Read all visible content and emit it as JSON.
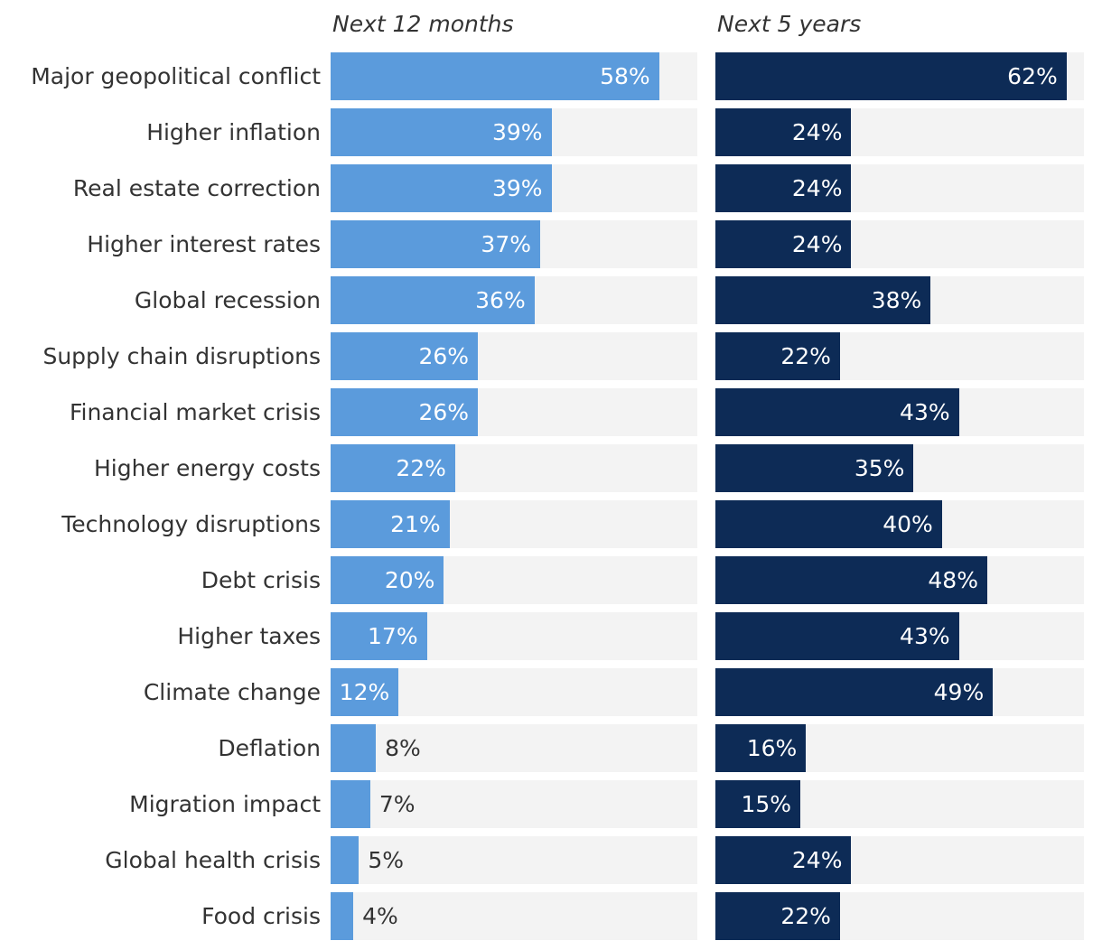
{
  "chart_data": {
    "type": "bar",
    "orientation": "horizontal",
    "categories": [
      "Major geopolitical conflict",
      "Higher inflation",
      "Real estate correction",
      "Higher interest rates",
      "Global recession",
      "Supply chain disruptions",
      "Financial market crisis",
      "Higher energy costs",
      "Technology disruptions",
      "Debt crisis",
      "Higher taxes",
      "Climate change",
      "Deflation",
      "Migration impact",
      "Global health crisis",
      "Food crisis"
    ],
    "series": [
      {
        "name": "Next 12 months",
        "color": "#5b9bdc",
        "values": [
          58,
          39,
          39,
          37,
          36,
          26,
          26,
          22,
          21,
          20,
          17,
          12,
          8,
          7,
          5,
          4
        ]
      },
      {
        "name": "Next 5 years",
        "color": "#0d2b56",
        "values": [
          62,
          24,
          24,
          24,
          38,
          22,
          43,
          35,
          40,
          48,
          43,
          49,
          16,
          15,
          24,
          22
        ]
      }
    ],
    "value_suffix": "%",
    "track_color": "#f3f3f3",
    "grid": false
  }
}
